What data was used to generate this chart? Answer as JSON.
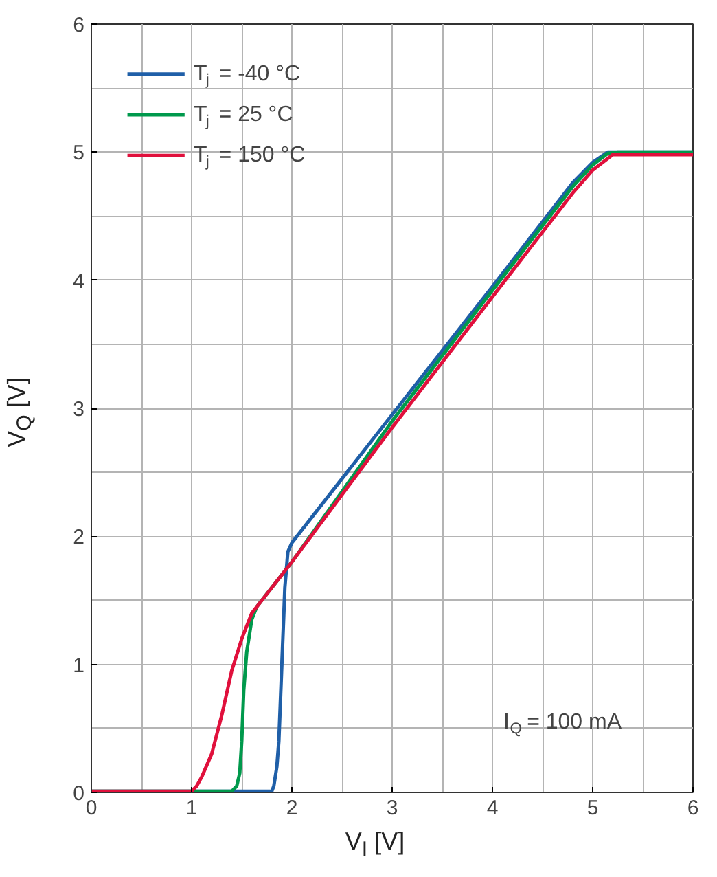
{
  "chart_data": {
    "type": "line",
    "xlabel": "V$_{I}$ [V]",
    "ylabel": "V$_{Q}$ [V]",
    "xlim": [
      0,
      6
    ],
    "ylim": [
      0,
      6
    ],
    "xticks": [
      0,
      1,
      2,
      3,
      4,
      5,
      6
    ],
    "yticks": [
      0,
      1,
      2,
      3,
      4,
      5,
      6
    ],
    "grid": true,
    "legend": "top left",
    "line_style": "solid",
    "marker": "none",
    "annotations": [
      "I$_{Q}$ = 100 mA"
    ],
    "series": [
      {
        "name": "T$_{j}$ = -40 °C",
        "color": "#1f5fa8",
        "x": [
          0,
          1.8,
          1.82,
          1.85,
          1.87,
          1.9,
          1.93,
          1.96,
          2.0,
          2.05,
          2.2,
          3,
          4,
          4.8,
          5.0,
          5.15,
          5.25,
          6
        ],
        "values": [
          0.01,
          0.01,
          0.05,
          0.2,
          0.4,
          1.0,
          1.6,
          1.88,
          1.95,
          2.0,
          2.15,
          2.95,
          3.95,
          4.76,
          4.92,
          5.0,
          5.0,
          5.0
        ]
      },
      {
        "name": "T$_{j}$ = 25 °C",
        "color": "#00994c",
        "x": [
          0,
          1.4,
          1.45,
          1.48,
          1.5,
          1.52,
          1.55,
          1.6,
          1.65,
          1.8,
          2.0,
          3,
          4,
          4.8,
          5.0,
          5.15,
          5.25,
          6
        ],
        "values": [
          0.01,
          0.01,
          0.05,
          0.15,
          0.4,
          0.8,
          1.1,
          1.35,
          1.45,
          1.6,
          1.8,
          2.9,
          3.92,
          4.73,
          4.9,
          4.99,
          5.0,
          5.0
        ]
      },
      {
        "name": "T$_{j}$ = 150 °C",
        "color": "#e0103c",
        "x": [
          0,
          1.0,
          1.05,
          1.1,
          1.2,
          1.3,
          1.4,
          1.5,
          1.6,
          1.75,
          2.0,
          3,
          4,
          4.8,
          5.0,
          5.2,
          5.3,
          6
        ],
        "values": [
          0.01,
          0.01,
          0.05,
          0.12,
          0.3,
          0.6,
          0.95,
          1.2,
          1.4,
          1.55,
          1.8,
          2.85,
          3.87,
          4.68,
          4.86,
          4.98,
          4.98,
          4.98
        ]
      }
    ]
  }
}
